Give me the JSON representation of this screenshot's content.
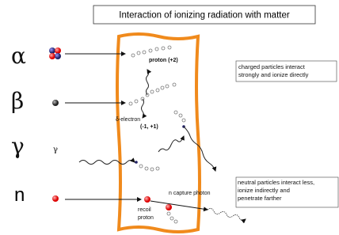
{
  "title": "Interaction of ionizing radiation with matter",
  "particles": [
    {
      "symbol": "α"
    },
    {
      "symbol": "β"
    },
    {
      "symbol": "γ",
      "icon_label": "γ"
    },
    {
      "symbol": "n"
    }
  ],
  "labels": {
    "proton": "proton (+2)",
    "delta_electron": "δ-electron",
    "charges": "(-1, +1)",
    "capture_photon": "n capture photon",
    "recoil_proton": [
      "recoil",
      "proton"
    ]
  },
  "notes": {
    "charged": [
      "charged particles interact",
      "strongly and ionize directly"
    ],
    "neutral": [
      "neutral particles interact less,",
      "ionize indirectly and",
      "penetrate farther"
    ]
  }
}
